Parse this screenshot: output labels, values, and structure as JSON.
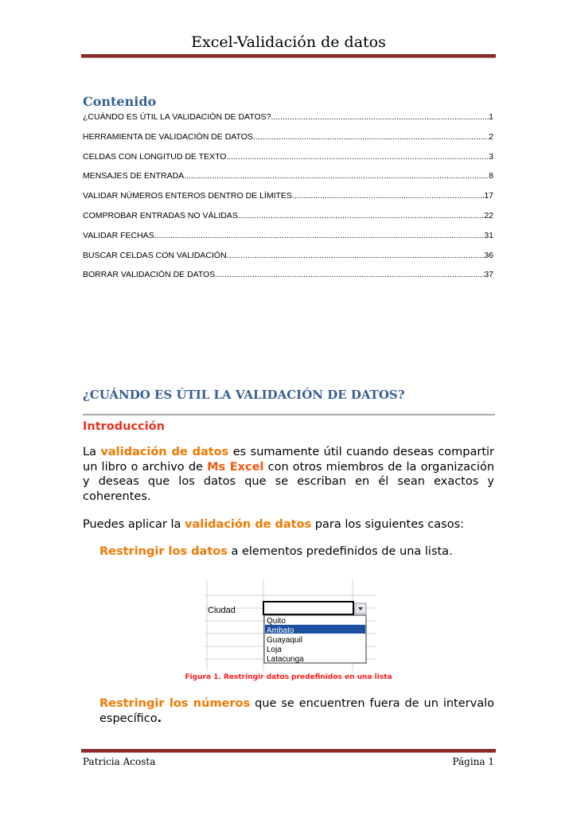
{
  "header": {
    "title": "Excel-Validación de datos"
  },
  "toc": {
    "heading": "Contenido",
    "items": [
      {
        "label": "¿CUÁNDO ES ÚTIL LA VALIDACIÓN DE DATOS?",
        "page": "1"
      },
      {
        "label": "HERRAMIENTA DE VALIDACIÓN DE DATOS",
        "page": "2"
      },
      {
        "label": "CELDAS CON LONGITUD DE TEXTO",
        "page": "3"
      },
      {
        "label": "MENSAJES DE ENTRADA",
        "page": "8"
      },
      {
        "label": "VALIDAR NÚMEROS ENTEROS DENTRO DE LÍMITES",
        "page": "17"
      },
      {
        "label": "COMPROBAR ENTRADAS NO VÁLIDAS",
        "page": "22"
      },
      {
        "label": "VALIDAR FECHAS",
        "page": "31"
      },
      {
        "label": "BUSCAR CELDAS CON VALIDACIÓN",
        "page": "36"
      },
      {
        "label": "BORRAR VALIDACIÓN DE DATOS",
        "page": "37"
      }
    ]
  },
  "section": {
    "heading": "¿CUÁNDO ES ÚTIL LA VALIDACIÓN DE DATOS?",
    "subheading": "Introducción",
    "p1": {
      "a": "La ",
      "b": "validación de datos",
      "c": " es sumamente útil cuando deseas compartir un libro o archivo de ",
      "d": "Ms Excel",
      "e": " con otros miembros de la organización y deseas que los datos que se escriban en él sean exactos y coherentes."
    },
    "p2": {
      "a": "Puedes aplicar la ",
      "b": "validación de datos",
      "c": " para los siguientes casos:"
    },
    "b1": {
      "a": "Restringir los datos",
      "b": " a elementos predefinidos de una lista."
    },
    "b2": {
      "a": "Restringir los números",
      "b": " que se encuentren fuera de un intervalo específico",
      "c": "."
    }
  },
  "figure": {
    "cell_label": "Ciudad",
    "options": [
      "Quito",
      "Ambato",
      "Guayaquil",
      "Loja",
      "Latacunga"
    ],
    "selected": "Ambato",
    "caption": "Figura 1. Restringir datos predefinidos en una lista"
  },
  "footer": {
    "author": "Patricia Acosta",
    "page": "Página 1"
  },
  "colors": {
    "heading": "#365f91",
    "highlight": "#f07800",
    "rule": "#8b2a2a",
    "caption": "#ff1a1a"
  }
}
